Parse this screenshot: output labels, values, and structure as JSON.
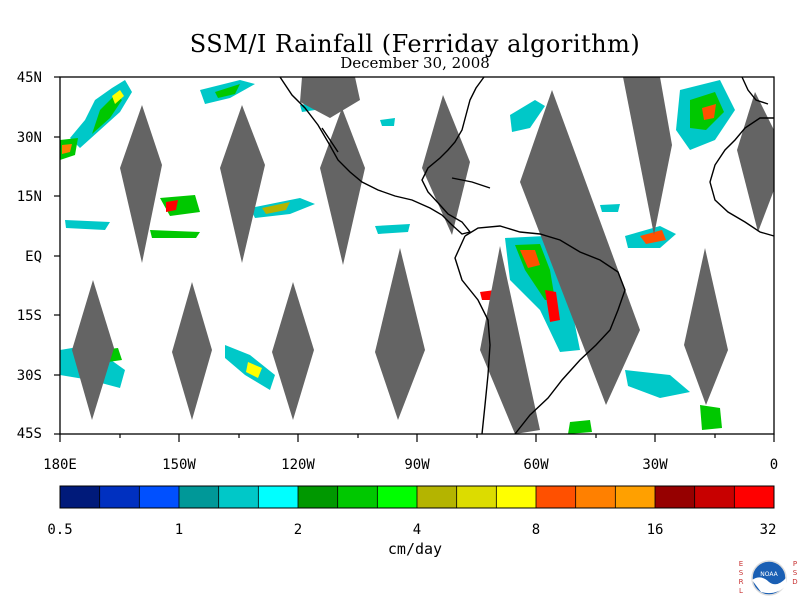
{
  "title": "SSM/I Rainfall (Ferriday algorithm)",
  "subtitle": "December 30, 2008",
  "lat_labels": [
    "45N",
    "30N",
    "15N",
    "EQ",
    "15S",
    "30S",
    "45S"
  ],
  "lon_labels": [
    "180E",
    "150W",
    "120W",
    "90W",
    "60W",
    "30W",
    "0"
  ],
  "colorbar": {
    "tick_labels": [
      "0.5",
      "1",
      "2",
      "4",
      "8",
      "16",
      "32"
    ],
    "units": "cm/day",
    "colors": [
      "#001a7a",
      "#0030c0",
      "#0050ff",
      "#009898",
      "#00c8c8",
      "#00ffff",
      "#009800",
      "#00c800",
      "#00ff00",
      "#b4b400",
      "#dcdc00",
      "#ffff00",
      "#ff5000",
      "#ff8000",
      "#ffa000",
      "#960000",
      "#c80000",
      "#ff0000"
    ]
  },
  "logo": {
    "left_text": "ESRL",
    "right_text": "PSD",
    "emblem": "NOAA"
  },
  "style": {
    "no_data_gray": "#646464",
    "land_outline": "#000000"
  }
}
